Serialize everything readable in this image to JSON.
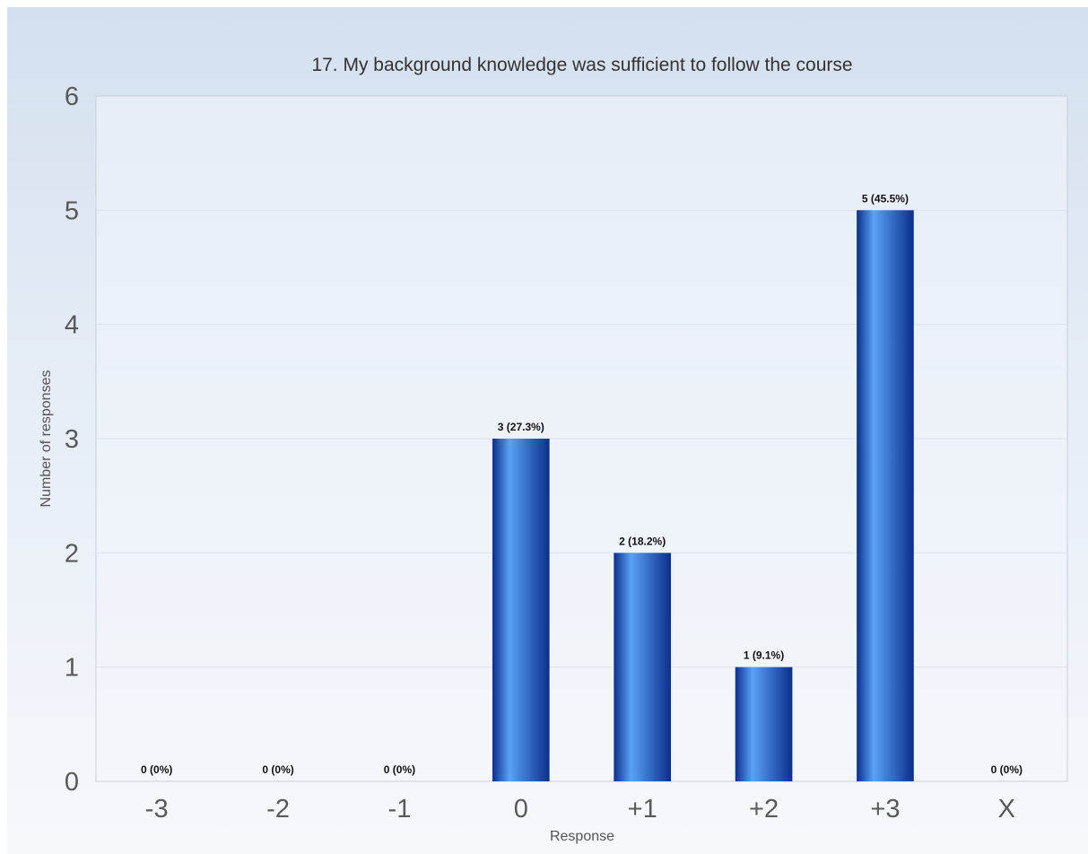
{
  "chart_data": {
    "type": "bar",
    "title": "17. My background knowledge was sufficient to follow the course",
    "xlabel": "Response",
    "ylabel": "Number of responses",
    "categories": [
      "-3",
      "-2",
      "-1",
      "0",
      "+1",
      "+2",
      "+3",
      "X"
    ],
    "values": [
      0,
      0,
      0,
      3,
      2,
      1,
      5,
      0
    ],
    "data_labels": [
      "0 (0%)",
      "0 (0%)",
      "0 (0%)",
      "3 (27.3%)",
      "2 (18.2%)",
      "1 (9.1%)",
      "5 (45.5%)",
      "0 (0%)"
    ],
    "yticks": [
      "0",
      "1",
      "2",
      "3",
      "4",
      "5",
      "6"
    ],
    "ylim": [
      0,
      6
    ],
    "grid": true,
    "legend": "none",
    "colors": {
      "bar_dark": "#0a2f8a",
      "bar_light": "#5aa2f5",
      "background_top": "#d4e0ef",
      "background_bottom": "#f6f8fc"
    }
  }
}
